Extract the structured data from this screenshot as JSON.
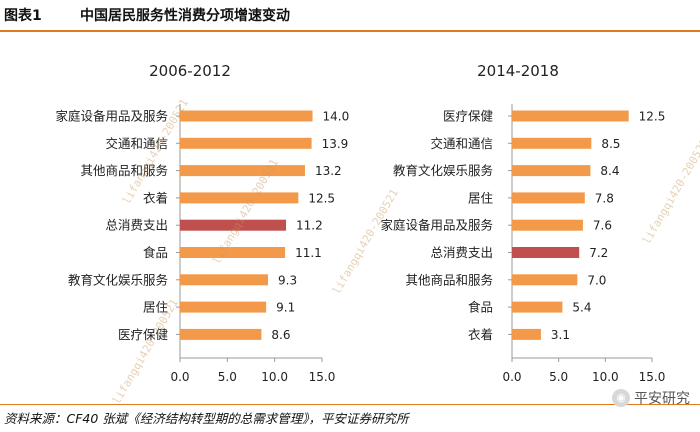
{
  "header": {
    "figure_label": "图表1",
    "title": "中国居民服务性消费分项增速变动"
  },
  "colors": {
    "bar": "#f39a4a",
    "highlight": "#c0504d",
    "axis": "#999999",
    "accent": "#e07b1f"
  },
  "chart_data": [
    {
      "type": "bar",
      "orientation": "horizontal",
      "title": "2006-2012",
      "categories": [
        "家庭设备用品及服务",
        "交通和通信",
        "其他商品和服务",
        "衣着",
        "总消费支出",
        "食品",
        "教育文化娱乐服务",
        "居住",
        "医疗保健"
      ],
      "values": [
        14.0,
        13.9,
        13.2,
        12.5,
        11.2,
        11.1,
        9.3,
        9.1,
        8.6
      ],
      "value_labels": [
        "14.0",
        "13.9",
        "13.2",
        "12.5",
        "11.2",
        "11.1",
        "9.3",
        "9.1",
        "8.6"
      ],
      "highlight_category": "总消费支出",
      "xlim": [
        0,
        15
      ],
      "xticks": [
        "0.0",
        "5.0",
        "10.0",
        "15.0"
      ],
      "xlabel": "",
      "ylabel": ""
    },
    {
      "type": "bar",
      "orientation": "horizontal",
      "title": "2014-2018",
      "categories": [
        "医疗保健",
        "交通和通信",
        "教育文化娱乐服务",
        "居住",
        "家庭设备用品及服务",
        "总消费支出",
        "其他商品和服务",
        "食品",
        "衣着"
      ],
      "values": [
        12.5,
        8.5,
        8.4,
        7.8,
        7.6,
        7.2,
        7.0,
        5.4,
        3.1
      ],
      "value_labels": [
        "12.5",
        "8.5",
        "8.4",
        "7.8",
        "7.6",
        "7.2",
        "7.0",
        "5.4",
        "3.1"
      ],
      "highlight_category": "总消费支出",
      "xlim": [
        0,
        15
      ],
      "xticks": [
        "0.0",
        "5.0",
        "10.0",
        "15.0"
      ],
      "xlabel": "",
      "ylabel": ""
    }
  ],
  "footer": {
    "source": "资料来源：CF40 张斌《经济结构转型期的总需求管理》，平安证券研究所"
  },
  "watermark": {
    "text": "lifangqi420-200521"
  },
  "logo": {
    "text": "平安研究",
    "icon": "wechat-icon"
  }
}
